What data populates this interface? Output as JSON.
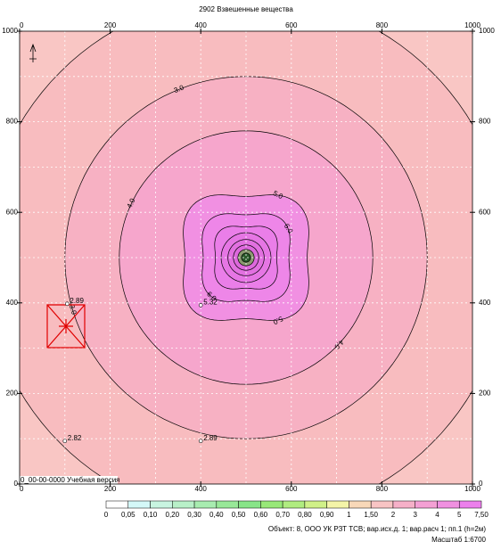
{
  "chart_data": {
    "type": "contour",
    "title": "2902 Взвешенные вещества",
    "xlim": [
      0,
      1000
    ],
    "ylim": [
      0,
      1000
    ],
    "xticks": [
      0,
      200,
      400,
      600,
      800,
      1000
    ],
    "yticks": [
      0,
      200,
      400,
      600,
      800,
      1000
    ],
    "grid": true,
    "background": "#f9c6c4",
    "center": [
      500,
      500
    ],
    "contours": [
      {
        "r": 580,
        "fill": "#f8bcbf"
      },
      {
        "r": 400,
        "fill": "#f7b1c3",
        "level": {
          "value": 3,
          "label": "3.0"
        }
      },
      {
        "r": 280,
        "fill": "#f6a6cc",
        "level": {
          "value": 4,
          "label": "4.0"
        }
      },
      {
        "r": 150,
        "fill": "#f190e2",
        "level": {
          "value": 5,
          "label": "5.0"
        }
      },
      {
        "r": 105,
        "fill": "#ee86e8",
        "level": {
          "value": 6,
          "label": "6.0"
        }
      },
      {
        "r": 75,
        "fill": "#ea7ee8"
      },
      {
        "r": 55,
        "fill": "#e676e4"
      },
      {
        "r": 40,
        "fill": "#e270e0"
      },
      {
        "r": 28,
        "fill": "#dd68dc"
      },
      {
        "r": 18,
        "fill": "#8a9a70"
      },
      {
        "r": 10,
        "fill": "#2a5a2a"
      }
    ],
    "points": [
      {
        "x": 105,
        "y": 398,
        "value": 2.89
      },
      {
        "x": 100,
        "y": 95,
        "value": 2.82
      },
      {
        "x": 400,
        "y": 95,
        "value": 2.89
      },
      {
        "x": 400,
        "y": 395,
        "value": 5.32
      }
    ],
    "watermark": "0_00-00-0000 Учебная версия",
    "legend": {
      "colors": [
        "#ffffff",
        "#d4f8f8",
        "#c8f4e0",
        "#b8f0c8",
        "#a8ecb0",
        "#98e898",
        "#88e488",
        "#98e878",
        "#b0ec80",
        "#d0f088",
        "#f4f4a8",
        "#f8d8b8",
        "#f8c4c4",
        "#f6b0c8",
        "#f4a0d4",
        "#f090e0",
        "#ec80ec"
      ],
      "ticks": [
        0,
        {
          "value": 0.05,
          "label": "0,05"
        },
        {
          "value": 0.1,
          "label": "0,10"
        },
        {
          "value": 0.2,
          "label": "0,20"
        },
        {
          "value": 0.3,
          "label": "0,30"
        },
        {
          "value": 0.4,
          "label": "0,40"
        },
        {
          "value": 0.5,
          "label": "0,50"
        },
        {
          "value": 0.6,
          "label": "0,60"
        },
        {
          "value": 0.7,
          "label": "0,70"
        },
        {
          "value": 0.8,
          "label": "0,80"
        },
        {
          "value": 0.9,
          "label": "0,90"
        },
        1,
        {
          "value": 1.5,
          "label": "1,50"
        },
        2,
        3,
        4,
        5,
        {
          "value": 7.5,
          "label": "7,50"
        }
      ]
    },
    "footer": [
      "Объект: 8, ООО УК РЗТ ТСВ; вар.исх.д. 1; вар.расч 1; пп.1 (h=2м)",
      "Масштаб 1:6700"
    ]
  }
}
